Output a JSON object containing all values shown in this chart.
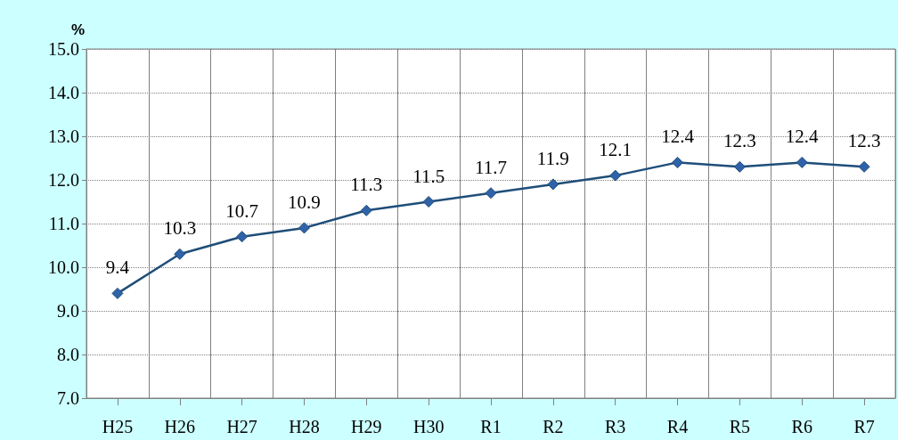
{
  "chart_data": {
    "type": "line",
    "ylabel": "%",
    "categories": [
      "H25",
      "H26",
      "H27",
      "H28",
      "H29",
      "H30",
      "R1",
      "R2",
      "R3",
      "R4",
      "R5",
      "R6",
      "R7"
    ],
    "series": [
      {
        "color": "#1f4e79",
        "values": [
          9.4,
          10.3,
          10.7,
          10.9,
          11.3,
          11.5,
          11.7,
          11.9,
          12.1,
          12.4,
          12.3,
          12.4,
          12.3
        ]
      }
    ],
    "ylim": [
      7,
      15
    ],
    "yticks": [
      {
        "value": 7,
        "label": "7.0"
      },
      {
        "value": 8,
        "label": "8.0"
      },
      {
        "value": 9,
        "label": "9.0"
      },
      {
        "value": 10,
        "label": "10.0"
      },
      {
        "value": 11,
        "label": "11.0"
      },
      {
        "value": 12,
        "label": "12.0"
      },
      {
        "value": 13,
        "label": "13.0"
      },
      {
        "value": 14,
        "label": "14.0"
      },
      {
        "value": 15,
        "label": "15.0"
      }
    ],
    "grid": true,
    "marker": "diamond",
    "line_style": "solid",
    "data_labels": true
  }
}
